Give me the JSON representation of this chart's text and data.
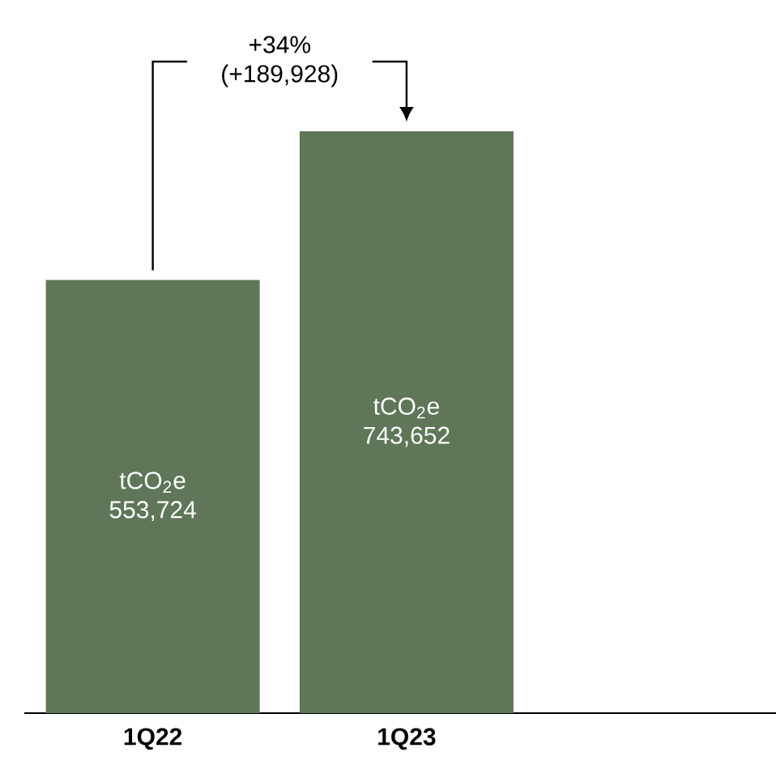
{
  "chart_data": {
    "type": "bar",
    "categories": [
      "1Q22",
      "1Q23"
    ],
    "values": [
      553724,
      743652
    ],
    "color": "#5f7658",
    "tick_labels": "x",
    "value_labels": [
      "tCO$_{2}$e 553,724",
      "tCO$_{2}$e 743,652"
    ],
    "annotations": [
      "+34% (+189,928)"
    ]
  }
}
